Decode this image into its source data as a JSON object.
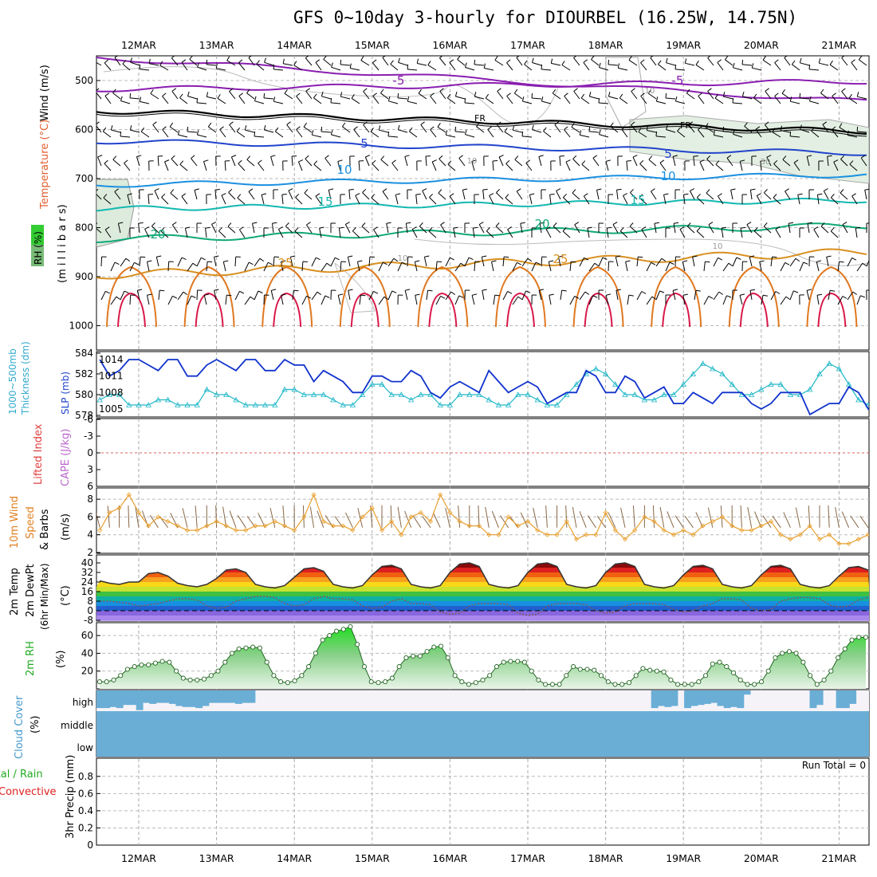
{
  "title": "GFS 0~10day 3-hourly for DIOURBEL (16.25W, 14.75N)",
  "dates": [
    "12MAR",
    "13MAR",
    "14MAR",
    "15MAR",
    "16MAR",
    "17MAR",
    "18MAR",
    "19MAR",
    "20MAR",
    "21MAR"
  ],
  "colors": {
    "isotherm_purple": "#8a1fb0",
    "isotherm_blue": "#2244cc",
    "isotherm_cyan": "#1a90e0",
    "isotherm_teal": "#14b8b0",
    "isotherm_green": "#10a878",
    "isotherm_orange": "#d89020",
    "isotherm_red": "#d81848",
    "slp_line": "#1133cc",
    "thickness_line": "#22b8c8",
    "cloud": "#6aaed6",
    "rh_fill": "#66cc66",
    "wind_line": "#e8a030"
  },
  "panels": {
    "upper_air": {
      "ylabel_wind": "Wind (m/s)",
      "ylabel_temp": "Temperature (°C)",
      "ylabel_rh": "RH (%)",
      "ylabel_units": "(m i l l i b a r s)",
      "yticks": [
        "500",
        "600",
        "700",
        "800",
        "900",
        "1000"
      ],
      "contour_labels": [
        "-5",
        "-5",
        "FR",
        "FR",
        "5",
        "5",
        "10",
        "10",
        "15",
        "15",
        "20",
        "20",
        "25",
        "25",
        "10",
        "10",
        "10",
        "10",
        "30"
      ]
    },
    "slp": {
      "ylabel_left": "1000~500mb Thickness (dm)",
      "ylabel_right": "SLP (mb)",
      "yticks_left": [
        "584",
        "582",
        "580",
        "578"
      ],
      "yticks_right": [
        "1014",
        "1011",
        "1008",
        "1005"
      ]
    },
    "stability": {
      "ylabel_left": "Lifted Index",
      "ylabel_right": "CAPE (J/kg)",
      "yticks": [
        "-6",
        "-3",
        "0",
        "3",
        "6"
      ]
    },
    "wind10m": {
      "ylabel_a": "10m Wind",
      "ylabel_b": "Speed",
      "ylabel_c": "& Barbs",
      "ylabel_units": "(m/s)",
      "yticks": [
        "8",
        "6",
        "4",
        "2"
      ]
    },
    "temp2m": {
      "ylabel_a": "2m Temp",
      "ylabel_b": "2m DewPt",
      "ylabel_c": "(6hr Min/Max)",
      "ylabel_units": "(°C)",
      "yticks": [
        "40",
        "32",
        "24",
        "16",
        "8",
        "0",
        "-8"
      ]
    },
    "rh2m": {
      "ylabel": "2m RH",
      "ylabel_units": "(%)",
      "yticks": [
        "60",
        "40",
        "20"
      ]
    },
    "cloud": {
      "ylabel": "Cloud Cover",
      "ylabel_units": "(%)",
      "levels": [
        "high",
        "middle",
        "low"
      ]
    },
    "precip": {
      "ylabel_a": "Total / Rain",
      "ylabel_b": "Convective",
      "ylabel_c": "3hr Precip (mm)",
      "yticks": [
        "0.8",
        "0.6",
        "0.4",
        "0.2",
        "0"
      ],
      "run_total": "Run Total = 0"
    }
  },
  "chart_data": [
    {
      "type": "line",
      "title": "1000~500mb Thickness / SLP",
      "x_start": "11MAR 12Z",
      "x_step_hours": 3,
      "series": [
        {
          "name": "SLP (mb)",
          "values": [
            1014,
            1011,
            1012,
            1014,
            1014,
            1013,
            1012,
            1014,
            1014,
            1011,
            1011,
            1013,
            1014,
            1013,
            1012,
            1014,
            1014,
            1012,
            1012,
            1014,
            1013,
            1013,
            1010,
            1012,
            1011,
            1010,
            1008,
            1008,
            1011,
            1011,
            1010,
            1010,
            1012,
            1011,
            1008,
            1007,
            1009,
            1010,
            1009,
            1008,
            1012,
            1010,
            1008,
            1009,
            1010,
            1009,
            1006,
            1007,
            1008,
            1008,
            1012,
            1011,
            1008,
            1008,
            1011,
            1010,
            1007,
            1008,
            1009,
            1006,
            1006,
            1008,
            1007,
            1006,
            1008,
            1008,
            1008,
            1006,
            1005,
            1006,
            1008,
            1008,
            1008,
            1004,
            1005,
            1006,
            1006,
            1009,
            1008,
            1005,
            1004,
            1006,
            1007,
            1006,
            1004,
            1005,
            1006,
            1005,
            1007,
            1007,
            1007,
            1005,
            1005,
            1006,
            1008,
            1006,
            1007,
            1008,
            1009,
            1008
          ]
        },
        {
          "name": "1000~500mb Thickness (dm)",
          "values": [
            579.5,
            580,
            580,
            579,
            579,
            579,
            579.5,
            579.5,
            579,
            579,
            579,
            580.5,
            580,
            580,
            579.5,
            579,
            579,
            579,
            579,
            580.5,
            580.5,
            580,
            580,
            580,
            579.5,
            579,
            579,
            580,
            581,
            581,
            580,
            580,
            579.5,
            580,
            580,
            579,
            579,
            580,
            580,
            580,
            579.5,
            579,
            579,
            580,
            580,
            579.5,
            579,
            579,
            580,
            581,
            582,
            582.5,
            582,
            581,
            580,
            580,
            579.5,
            579.5,
            580,
            580,
            581,
            582,
            583,
            582.5,
            582,
            581,
            580,
            580,
            580.5,
            581,
            581,
            580,
            580,
            580.5,
            582,
            583,
            582.5,
            581,
            579.5,
            579,
            579.5,
            580.5,
            581,
            580,
            579.5,
            579,
            579.5,
            580.5,
            581,
            580,
            579,
            579,
            580,
            581,
            580,
            579,
            578.5,
            578,
            578,
            577.5
          ]
        }
      ]
    },
    {
      "type": "line",
      "title": "10m Wind Speed",
      "ylim": [
        2,
        9
      ],
      "series": [
        {
          "name": "10m Wind Speed (m/s)",
          "values": [
            4.5,
            6.5,
            7,
            8.5,
            6.5,
            5,
            6,
            5.5,
            5,
            4.5,
            4.5,
            5,
            5.5,
            5,
            4.5,
            4.5,
            5,
            5,
            5.5,
            5,
            4.5,
            6,
            8.5,
            5.5,
            5,
            5,
            4.5,
            6,
            7,
            4.5,
            5.5,
            4,
            6,
            6.5,
            5.5,
            8.5,
            6.5,
            5.5,
            5,
            5,
            4,
            4,
            6,
            5,
            5.5,
            4.5,
            4,
            4,
            5.5,
            3.5,
            4,
            4,
            6.5,
            4.5,
            3.5,
            4.5,
            6,
            5.5,
            4.5,
            4,
            4.5,
            4,
            5,
            5.5,
            6,
            5,
            4.5,
            4.5,
            5,
            5.5,
            4,
            3.5,
            4,
            5,
            3.5,
            4,
            3,
            3,
            3.5,
            4,
            3.5,
            4,
            4,
            3.5,
            3,
            4,
            3.5,
            3.5,
            3,
            3.5,
            2.5,
            3,
            3,
            3.5,
            4,
            8.5,
            3.5,
            3.5,
            4,
            2.5
          ]
        }
      ]
    },
    {
      "type": "line",
      "title": "2m Temp / DewPt",
      "ylim": [
        -8,
        40
      ],
      "series": [
        {
          "name": "2m Temp",
          "daily_max": [
            32,
            35,
            36,
            38,
            40,
            40,
            40,
            38,
            38,
            37
          ],
          "daily_min": [
            22,
            20,
            19,
            19,
            19,
            19,
            19,
            19,
            19,
            19
          ]
        },
        {
          "name": "2m DewPt",
          "daily_range": [
            [
              4,
              8
            ],
            [
              2,
              10
            ],
            [
              4,
              12
            ],
            [
              2,
              10
            ],
            [
              -3,
              6
            ],
            [
              -4,
              6
            ],
            [
              -2,
              6
            ],
            [
              -1,
              6
            ],
            [
              0,
              10
            ],
            [
              3,
              11
            ]
          ]
        }
      ]
    },
    {
      "type": "area",
      "title": "2m RH",
      "ylim": [
        0,
        70
      ],
      "series": [
        {
          "name": "2m RH (%)",
          "values": [
            8,
            8,
            10,
            15,
            22,
            25,
            27,
            27,
            29,
            31,
            30,
            20,
            12,
            10,
            10,
            11,
            15,
            20,
            30,
            40,
            45,
            46,
            47,
            46,
            30,
            15,
            8,
            7,
            9,
            15,
            25,
            40,
            55,
            60,
            65,
            67,
            70,
            50,
            25,
            8,
            7,
            8,
            12,
            25,
            35,
            37,
            37,
            42,
            47,
            48,
            35,
            15,
            8,
            5,
            7,
            10,
            15,
            25,
            30,
            31,
            31,
            30,
            20,
            10,
            5,
            5,
            5,
            15,
            25,
            22,
            22,
            21,
            15,
            8,
            5,
            5,
            7,
            15,
            23,
            21,
            20,
            19,
            10,
            5,
            5,
            5,
            8,
            15,
            28,
            30,
            25,
            18,
            10,
            5,
            5,
            8,
            20,
            35,
            40,
            42,
            40,
            30,
            15,
            5,
            10,
            20,
            35,
            45,
            55,
            58,
            58
          ]
        }
      ]
    },
    {
      "type": "bar",
      "title": "Cloud Cover high",
      "ylim": [
        0,
        100
      ],
      "series": [
        {
          "name": "high cloud (%)",
          "values": [
            85,
            85,
            80,
            85,
            70,
            70,
            95,
            60,
            65,
            60,
            60,
            65,
            75,
            80,
            80,
            85,
            75,
            60,
            60,
            60,
            60,
            65,
            60,
            60,
            0,
            0,
            0,
            0,
            0,
            0,
            0,
            0,
            0,
            0,
            0,
            0,
            0,
            0,
            0,
            0,
            0,
            0,
            0,
            0,
            0,
            0,
            0,
            0,
            0,
            0,
            0,
            0,
            0,
            0,
            0,
            0,
            0,
            0,
            0,
            0,
            0,
            0,
            0,
            0,
            0,
            0,
            0,
            0,
            0,
            0,
            0,
            0,
            0,
            0,
            0,
            0,
            0,
            0,
            0,
            0,
            0,
            0,
            0,
            0,
            85,
            75,
            80,
            75,
            0,
            85,
            75,
            70,
            65,
            60,
            75,
            85,
            80,
            85,
            20,
            0,
            0,
            0,
            0,
            0,
            0,
            0,
            0,
            0,
            85,
            70,
            0,
            0,
            85,
            85,
            65,
            0,
            0
          ]
        }
      ]
    }
  ]
}
